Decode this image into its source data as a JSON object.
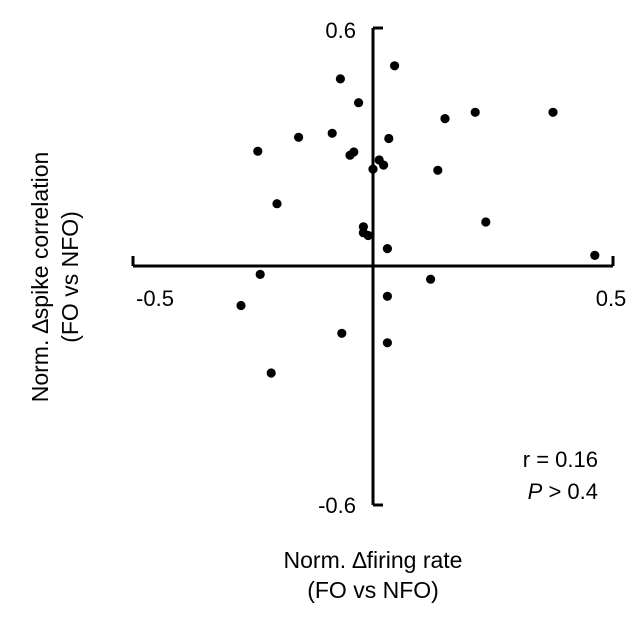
{
  "chart_data": {
    "type": "scatter",
    "xlabel": {
      "line1": "Norm. ∆firing rate",
      "line2": "(FO vs NFO)"
    },
    "ylabel": {
      "line1": "Norm. ∆spike correlation",
      "line2": "(FO vs NFO)"
    },
    "xlim": [
      -0.5,
      0.5
    ],
    "ylim": [
      -0.6,
      0.6
    ],
    "x_tick_labels": [
      "-0.5",
      "0.5"
    ],
    "y_tick_labels": [
      "0.6",
      "-0.6"
    ],
    "marker_color": "#000000",
    "points": [
      {
        "x": 0.045,
        "y": 0.505
      },
      {
        "x": -0.068,
        "y": 0.472
      },
      {
        "x": -0.03,
        "y": 0.412
      },
      {
        "x": 0.213,
        "y": 0.388
      },
      {
        "x": 0.375,
        "y": 0.388
      },
      {
        "x": 0.15,
        "y": 0.372
      },
      {
        "x": -0.085,
        "y": 0.335
      },
      {
        "x": -0.155,
        "y": 0.325
      },
      {
        "x": 0.033,
        "y": 0.322
      },
      {
        "x": -0.24,
        "y": 0.29
      },
      {
        "x": -0.04,
        "y": 0.288
      },
      {
        "x": -0.048,
        "y": 0.28
      },
      {
        "x": 0.013,
        "y": 0.268
      },
      {
        "x": 0.022,
        "y": 0.255
      },
      {
        "x": 0.0,
        "y": 0.245
      },
      {
        "x": 0.135,
        "y": 0.242
      },
      {
        "x": -0.2,
        "y": 0.158
      },
      {
        "x": 0.235,
        "y": 0.112
      },
      {
        "x": -0.02,
        "y": 0.1
      },
      {
        "x": -0.02,
        "y": 0.085
      },
      {
        "x": -0.01,
        "y": 0.078
      },
      {
        "x": 0.03,
        "y": 0.045
      },
      {
        "x": 0.462,
        "y": 0.028
      },
      {
        "x": -0.235,
        "y": -0.02
      },
      {
        "x": 0.12,
        "y": -0.032
      },
      {
        "x": 0.03,
        "y": -0.075
      },
      {
        "x": -0.275,
        "y": -0.098
      },
      {
        "x": -0.065,
        "y": -0.168
      },
      {
        "x": 0.03,
        "y": -0.192
      },
      {
        "x": -0.212,
        "y": -0.268
      }
    ],
    "annotations": {
      "r_text": "r = 0.16",
      "p_symbol": "P",
      "p_rest": " > 0.4"
    }
  }
}
